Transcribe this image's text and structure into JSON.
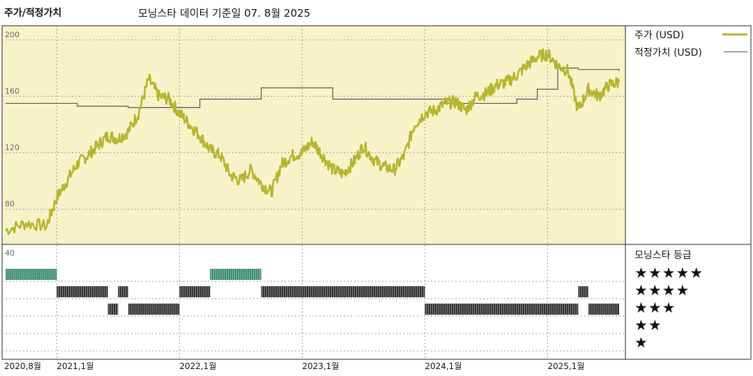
{
  "header": {
    "title": "주가/적정가치",
    "subtitle": "모닝스타 데이터 기준일 07. 8월 2025"
  },
  "legend": {
    "price_label": "주가 (USD)",
    "fair_value_label": "적정가치 (USD)"
  },
  "rating": {
    "title": "모닝스타 등급",
    "stars": [
      "★★★★★",
      "★★★★",
      "★★★",
      "★★",
      "★"
    ]
  },
  "colors": {
    "price": "#b5b530",
    "fair_value": "#777777",
    "plot_bg": "#f7f3c9",
    "five_star": "#3d8a72",
    "bars": "#333333",
    "grid": "#999999"
  },
  "chart_data": [
    {
      "type": "line",
      "title": "주가/적정가치",
      "ylim": [
        55,
        210
      ],
      "yticks": [
        80,
        120,
        160,
        200
      ],
      "xticks": [
        "2020,8월",
        "2021,1월",
        "2022,1월",
        "2023,1월",
        "2024,1월",
        "2025,1월"
      ],
      "xrange": [
        "2020-08",
        "2025-08"
      ],
      "grid": true,
      "legend_position": "right",
      "series": [
        {
          "name": "주가 (USD)",
          "x": [
            "2020-08",
            "2020-10",
            "2020-12",
            "2021-01",
            "2021-02",
            "2021-03",
            "2021-04",
            "2021-05",
            "2021-06",
            "2021-07",
            "2021-08",
            "2021-09",
            "2021-10",
            "2021-11",
            "2021-12",
            "2022-01",
            "2022-02",
            "2022-03",
            "2022-04",
            "2022-05",
            "2022-06",
            "2022-07",
            "2022-08",
            "2022-09",
            "2022-10",
            "2022-11",
            "2022-12",
            "2023-01",
            "2023-02",
            "2023-03",
            "2023-04",
            "2023-05",
            "2023-06",
            "2023-07",
            "2023-08",
            "2023-09",
            "2023-10",
            "2023-11",
            "2023-12",
            "2024-01",
            "2024-02",
            "2024-03",
            "2024-04",
            "2024-05",
            "2024-06",
            "2024-07",
            "2024-08",
            "2024-09",
            "2024-10",
            "2024-11",
            "2024-12",
            "2025-01",
            "2025-02",
            "2025-03",
            "2025-04",
            "2025-05",
            "2025-06",
            "2025-07",
            "2025-08"
          ],
          "values": [
            65,
            70,
            68,
            88,
            100,
            112,
            118,
            125,
            132,
            130,
            135,
            148,
            172,
            160,
            158,
            148,
            140,
            132,
            122,
            118,
            104,
            100,
            108,
            98,
            92,
            112,
            118,
            120,
            128,
            118,
            108,
            105,
            113,
            125,
            115,
            110,
            108,
            118,
            140,
            148,
            150,
            155,
            156,
            150,
            160,
            162,
            168,
            170,
            175,
            182,
            188,
            190,
            182,
            178,
            150,
            165,
            160,
            168,
            170
          ]
        },
        {
          "name": "적정가치 (USD)",
          "x": [
            "2020-08",
            "2021-03",
            "2021-08",
            "2022-03",
            "2022-09",
            "2023-01",
            "2023-04",
            "2024-03",
            "2024-06",
            "2024-10",
            "2024-12",
            "2025-02",
            "2025-04",
            "2025-08"
          ],
          "values": [
            155,
            153,
            152,
            158,
            166,
            166,
            158,
            155,
            155,
            158,
            165,
            180,
            179,
            178
          ]
        }
      ]
    },
    {
      "type": "bar",
      "title": "모닝스타 등급",
      "ylabel_ticks": [
        40
      ],
      "categories": [
        "★★★★★",
        "★★★★",
        "★★★",
        "★★",
        "★"
      ],
      "periods": [
        {
          "start": "2020-08",
          "end": "2021-01",
          "rating": 5
        },
        {
          "start": "2021-01",
          "end": "2021-06",
          "rating": 4
        },
        {
          "start": "2021-06",
          "end": "2021-07",
          "rating": 3
        },
        {
          "start": "2021-07",
          "end": "2021-08",
          "rating": 4
        },
        {
          "start": "2021-08",
          "end": "2022-01",
          "rating": 3
        },
        {
          "start": "2022-01",
          "end": "2022-04",
          "rating": 4
        },
        {
          "start": "2022-04",
          "end": "2022-09",
          "rating": 5
        },
        {
          "start": "2022-09",
          "end": "2024-01",
          "rating": 4
        },
        {
          "start": "2024-01",
          "end": "2025-04",
          "rating": 3
        },
        {
          "start": "2025-04",
          "end": "2025-05",
          "rating": 4
        },
        {
          "start": "2025-05",
          "end": "2025-08",
          "rating": 3
        }
      ]
    }
  ]
}
